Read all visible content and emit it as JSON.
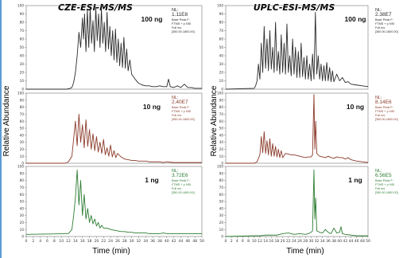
{
  "chart_data": [
    {
      "type": "line",
      "title": "CZE-ESI-MS/MS",
      "xlabel": "Time (min)",
      "ylabel": "Relative Abundance",
      "xlim": [
        0,
        50
      ],
      "ylim": [
        0,
        100
      ],
      "x_ticks": [
        0,
        2,
        4,
        6,
        8,
        10,
        12,
        14,
        16,
        18,
        20,
        22,
        24,
        26,
        28,
        30,
        32,
        34,
        36,
        38,
        40,
        42,
        44,
        46,
        48,
        50
      ],
      "x_tick_labels": [
        "0",
        "2",
        "4",
        "6",
        "8",
        "10",
        "12",
        "14",
        "16",
        "18",
        "20",
        "22",
        "24",
        "26",
        "28",
        "30",
        "32",
        "34",
        "36",
        "38",
        "40",
        "42",
        "44",
        "46",
        "48",
        "50"
      ],
      "y_ticks": [
        0,
        10,
        20,
        30,
        40,
        50,
        60,
        70,
        80,
        90,
        100
      ],
      "y_tick_labels": [
        "0",
        "10",
        "20",
        "30",
        "40",
        "50",
        "60",
        "70",
        "80",
        "90",
        "100"
      ],
      "grid": false,
      "panels": [
        {
          "amount": "100 ng",
          "nl_label": "NL:",
          "nl_value": "1.11E8",
          "meta": [
            "Base Peak F:",
            "FTMS + p NSI",
            "Full ms",
            "[350.00-1800.00]"
          ],
          "color": "#2b2b2b",
          "x": [
            0,
            10,
            11.5,
            12.5,
            13,
            13.5,
            14,
            14.5,
            15,
            15.5,
            16,
            16.3,
            16.6,
            17,
            17.4,
            17.8,
            18.2,
            18.6,
            19,
            19.4,
            19.8,
            20.2,
            20.6,
            21,
            21.4,
            21.8,
            22.2,
            22.6,
            23,
            23.4,
            23.8,
            24.2,
            24.6,
            25,
            25.4,
            25.8,
            26.2,
            26.6,
            27,
            27.4,
            27.8,
            28.2,
            28.6,
            29,
            29.5,
            30,
            31,
            32,
            33,
            34,
            35,
            36,
            37,
            38,
            39,
            40,
            40.5,
            41,
            42,
            43,
            44,
            45,
            46,
            47,
            48,
            49,
            50
          ],
          "y": [
            0,
            0,
            0,
            1,
            2,
            8,
            20,
            40,
            68,
            50,
            85,
            60,
            90,
            45,
            95,
            50,
            97,
            55,
            82,
            45,
            98,
            58,
            90,
            50,
            96,
            55,
            80,
            45,
            92,
            48,
            75,
            40,
            70,
            35,
            72,
            32,
            60,
            28,
            55,
            26,
            62,
            25,
            48,
            22,
            35,
            18,
            12,
            7,
            5,
            4,
            4,
            3,
            3,
            4,
            3,
            3,
            12,
            3,
            2,
            4,
            2,
            6,
            2,
            2,
            1,
            1,
            1
          ]
        },
        {
          "amount": "10 ng",
          "nl_label": "NL:",
          "nl_value": "2.40E7",
          "meta": [
            "Base Peak F:",
            "FTMS + p NSI",
            "Full ms",
            "[350.00-1800.00]"
          ],
          "color": "#8b3a2a",
          "x": [
            0,
            11,
            12,
            13,
            13.5,
            14,
            14.5,
            15,
            15.5,
            16,
            16.5,
            17,
            17.5,
            18,
            18.5,
            19,
            19.5,
            20,
            20.5,
            21,
            21.5,
            22,
            22.5,
            23,
            23.5,
            24,
            24.5,
            25,
            25.5,
            26,
            27,
            28,
            29,
            30,
            31,
            32,
            33,
            34,
            35,
            36,
            37,
            38,
            39,
            40,
            42,
            44,
            46,
            48,
            50
          ],
          "y": [
            0,
            0,
            2,
            10,
            35,
            60,
            25,
            70,
            30,
            55,
            22,
            62,
            24,
            48,
            20,
            42,
            18,
            38,
            16,
            30,
            14,
            34,
            12,
            22,
            10,
            26,
            9,
            18,
            8,
            14,
            9,
            6,
            5,
            4,
            4,
            3,
            3,
            3,
            2,
            2,
            2,
            2,
            1,
            2,
            1,
            1,
            1,
            1,
            1
          ]
        },
        {
          "amount": "1 ng",
          "nl_label": "NL:",
          "nl_value": "3.72E6",
          "meta": [
            "Base Peak F:",
            "FTMS + p NSI",
            "Full ms",
            "[350.00-1800.00]"
          ],
          "color": "#2e7d32",
          "x": [
            0,
            12,
            13,
            13.5,
            14,
            14.5,
            15,
            15.5,
            16,
            16.5,
            17,
            17.5,
            18,
            18.5,
            19,
            19.5,
            20,
            20.5,
            21,
            21.5,
            22,
            23,
            24,
            25,
            26,
            27,
            28,
            29,
            30,
            31,
            32,
            33,
            34,
            35,
            36,
            37,
            38,
            39,
            40,
            42,
            44,
            46,
            48,
            50
          ],
          "y": [
            3,
            4,
            10,
            30,
            55,
            95,
            45,
            80,
            30,
            60,
            25,
            40,
            20,
            30,
            18,
            25,
            15,
            20,
            12,
            16,
            12,
            12,
            10,
            9,
            8,
            7,
            7,
            6,
            6,
            5,
            5,
            5,
            5,
            4,
            4,
            4,
            4,
            5,
            4,
            4,
            4,
            4,
            4,
            4
          ]
        }
      ]
    },
    {
      "type": "line",
      "title": "UPLC-ESI-MS/MS",
      "xlabel": "Time (min)",
      "ylabel": "Relative Abundance",
      "xlim": [
        0,
        50
      ],
      "ylim": [
        0,
        100
      ],
      "x_ticks": [
        0,
        2,
        4,
        6,
        8,
        10,
        12,
        14,
        16,
        18,
        20,
        22,
        24,
        26,
        28,
        30,
        32,
        34,
        36,
        38,
        40,
        42,
        44,
        46,
        48,
        50
      ],
      "x_tick_labels": [
        "0",
        "2",
        "4",
        "6",
        "8",
        "10",
        "12",
        "14",
        "16",
        "18",
        "20",
        "22",
        "24",
        "26",
        "28",
        "30",
        "32",
        "34",
        "36",
        "38",
        "40",
        "42",
        "44",
        "46",
        "48",
        "50"
      ],
      "y_ticks": [
        0,
        10,
        20,
        30,
        40,
        50,
        60,
        70,
        80,
        90,
        100
      ],
      "y_tick_labels": [
        "0",
        "10",
        "20",
        "30",
        "40",
        "50",
        "60",
        "70",
        "80",
        "90",
        "100"
      ],
      "grid": false,
      "panels": [
        {
          "amount": "100 ng",
          "nl_label": "NL:",
          "nl_value": "2.38E7",
          "meta": [
            "Base Peak F:",
            "FTMS + p NSI",
            "Full ms",
            "[350.00-1800.00]"
          ],
          "color": "#2b2b2b",
          "x": [
            0,
            10,
            10.5,
            11,
            11.5,
            12,
            12.5,
            13,
            13.5,
            14,
            14.5,
            15,
            15.5,
            16,
            16.5,
            17,
            17.5,
            18,
            18.5,
            19,
            19.5,
            20,
            20.5,
            21,
            21.5,
            22,
            22.5,
            23,
            23.5,
            24,
            24.5,
            25,
            25.5,
            26,
            26.5,
            27,
            27.5,
            28,
            28.5,
            29,
            29.5,
            30,
            30.5,
            31,
            31.5,
            32,
            32.5,
            33,
            33.5,
            34,
            34.5,
            35,
            35.5,
            36,
            36.5,
            37,
            37.5,
            38,
            39,
            40,
            41,
            42,
            43,
            44,
            46,
            48,
            50
          ],
          "y": [
            0,
            1,
            4,
            10,
            30,
            12,
            55,
            20,
            75,
            25,
            60,
            22,
            70,
            24,
            50,
            20,
            80,
            22,
            45,
            18,
            65,
            20,
            55,
            18,
            78,
            20,
            40,
            16,
            60,
            18,
            50,
            14,
            45,
            14,
            55,
            15,
            38,
            12,
            40,
            12,
            30,
            10,
            42,
            12,
            92,
            18,
            40,
            12,
            30,
            10,
            28,
            10,
            32,
            10,
            26,
            9,
            22,
            9,
            18,
            10,
            14,
            8,
            9,
            6,
            5,
            4,
            3
          ]
        },
        {
          "amount": "10 ng",
          "nl_label": "NL:",
          "nl_value": "8.14E6",
          "meta": [
            "Base Peak F:",
            "FTMS + p NSI",
            "Full ms",
            "[350.00-1800.00]"
          ],
          "color": "#8b3a2a",
          "x": [
            0,
            10,
            11,
            12,
            12.5,
            13,
            13.5,
            14,
            14.5,
            15,
            15.5,
            16,
            16.5,
            17,
            17.5,
            18,
            18.5,
            19,
            19.5,
            20,
            21,
            22,
            23,
            24,
            25,
            26,
            27,
            28,
            29,
            30,
            30.5,
            31,
            31.3,
            31.6,
            32,
            33,
            34,
            35,
            36,
            37,
            38,
            39,
            40,
            41,
            42,
            43,
            44,
            46,
            48,
            50
          ],
          "y": [
            0,
            0,
            2,
            12,
            38,
            15,
            45,
            14,
            32,
            12,
            35,
            10,
            28,
            10,
            24,
            9,
            20,
            8,
            18,
            8,
            14,
            13,
            12,
            12,
            11,
            10,
            9,
            8,
            9,
            9,
            12,
            98,
            20,
            60,
            14,
            10,
            9,
            8,
            10,
            8,
            7,
            9,
            8,
            8,
            6,
            8,
            5,
            3,
            2,
            1
          ]
        },
        {
          "amount": "1 ng",
          "nl_label": "NL:",
          "nl_value": "6.56E5",
          "meta": [
            "Base Peak F:",
            "FTMS + p NSI",
            "Full ms",
            "[350.00-1800.00]"
          ],
          "color": "#2e7d32",
          "x": [
            0,
            10,
            12,
            14,
            16,
            18,
            20,
            22,
            24,
            26,
            28,
            29,
            30,
            30.5,
            31,
            31.3,
            31.6,
            32,
            33,
            34,
            35,
            36,
            37,
            38,
            39,
            40,
            40.5,
            41,
            42,
            44,
            46,
            48,
            50
          ],
          "y": [
            0,
            1,
            1,
            2,
            2,
            2,
            4,
            5,
            3,
            4,
            3,
            4,
            6,
            8,
            95,
            25,
            55,
            8,
            6,
            5,
            10,
            6,
            4,
            12,
            5,
            6,
            14,
            4,
            3,
            2,
            1,
            1,
            1
          ]
        }
      ]
    }
  ]
}
